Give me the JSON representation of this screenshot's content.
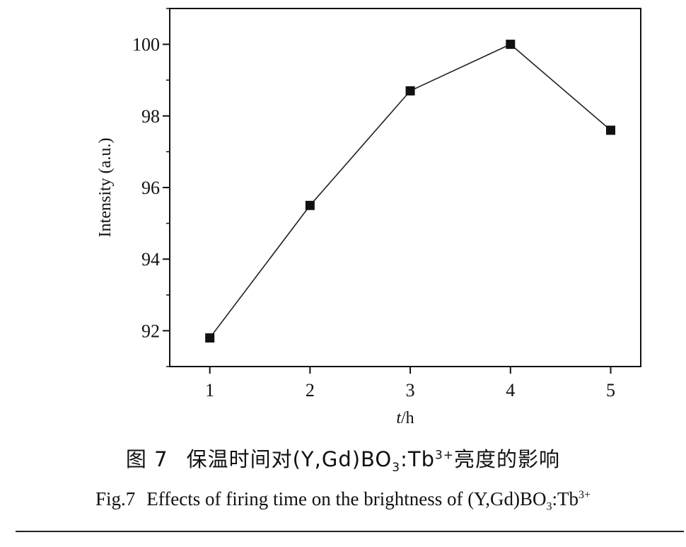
{
  "chart_data": {
    "type": "line",
    "x": [
      1,
      2,
      3,
      4,
      5
    ],
    "series": [
      {
        "values": [
          91.8,
          95.5,
          98.7,
          100.0,
          97.6
        ]
      }
    ],
    "xlabel_italic": "t",
    "xlabel_rest": "/h",
    "ylabel": "Intensity (a.u.)",
    "xlim": [
      0.6,
      5.3
    ],
    "ylim": [
      91.0,
      101.0
    ],
    "xticks": [
      "1",
      "2",
      "3",
      "4",
      "5"
    ],
    "yticks": [
      "92",
      "94",
      "96",
      "98",
      "100"
    ],
    "marker": "square",
    "grid": false,
    "line_color": "#222222",
    "marker_color": "#111111"
  },
  "caption_cn": {
    "fig_label": "图 7",
    "text_pre": "保温时间对(Y,Gd)BO",
    "sub": "3",
    "text_mid": ":Tb",
    "sup": "3+",
    "text_post": "亮度的影响"
  },
  "caption_en": {
    "fig_label": "Fig.7",
    "text_pre": "Effects of firing time on the brightness of (Y,Gd)BO",
    "sub": "3",
    "text_mid": ":Tb",
    "sup": "3+"
  }
}
